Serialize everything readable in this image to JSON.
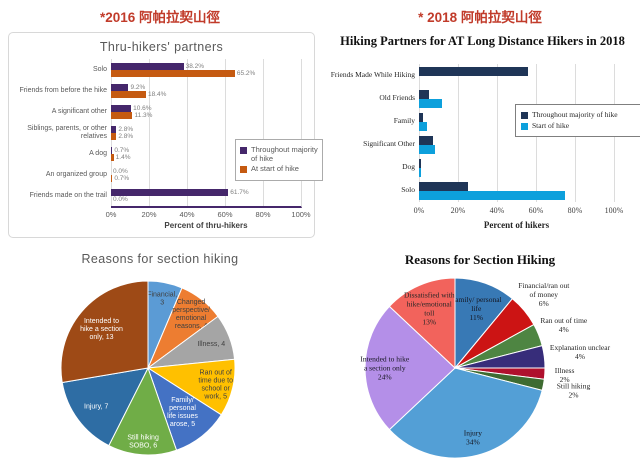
{
  "headers": {
    "left": "*2016 阿帕拉契山徑",
    "right": "* 2018 阿帕拉契山徑"
  },
  "chart_data": [
    {
      "id": "partners-2016",
      "type": "bar",
      "orientation": "horizontal",
      "title": "Thru-hikers' partners",
      "categories": [
        "Solo",
        "Friends from before the hike",
        "A significant other",
        "Siblings, parents, or other relatives",
        "A dog",
        "An organized group",
        "Friends made on the trail"
      ],
      "series": [
        {
          "name": "Throughout majority of hike",
          "color": "#45276B",
          "values": [
            38.2,
            9.2,
            10.6,
            2.8,
            0.7,
            0.0,
            61.7
          ]
        },
        {
          "name": "At start of hike",
          "color": "#C55A11",
          "values": [
            65.2,
            18.4,
            11.3,
            2.8,
            1.4,
            0.7,
            0.0
          ]
        }
      ],
      "xlabel": "Percent of thru-hikers",
      "xlim": [
        0,
        100
      ],
      "xticks": [
        "0%",
        "20%",
        "40%",
        "60%",
        "80%",
        "100%"
      ],
      "show_value_labels": true,
      "grid": true,
      "legend_position": "right-middle"
    },
    {
      "id": "partners-2018",
      "type": "bar",
      "orientation": "horizontal",
      "title": "Hiking Partners for AT Long Distance Hikers in 2018",
      "categories": [
        "Friends Made While Hiking",
        "Old Friends",
        "Family",
        "Significant Other",
        "Dog",
        "Solo"
      ],
      "series": [
        {
          "name": "Throughout majority of hike",
          "color": "#1F3557",
          "values": [
            56,
            5,
            2,
            7,
            1,
            25
          ]
        },
        {
          "name": "Start of hike",
          "color": "#0DA0DC",
          "values": [
            0,
            12,
            4,
            8,
            1,
            75
          ]
        }
      ],
      "xlabel": "Percent of hikers",
      "xlim": [
        0,
        100
      ],
      "xticks": [
        "0%",
        "20%",
        "40%",
        "60%",
        "80%",
        "100%"
      ],
      "show_value_labels": false,
      "grid": true,
      "legend_position": "right-middle"
    },
    {
      "id": "reasons-2016",
      "type": "pie",
      "title": "Reasons for section hiking",
      "start_angle_deg": 0,
      "direction": "clockwise",
      "slices": [
        {
          "label": "Financial",
          "value": 3,
          "color": "#5B9BD5",
          "label_lines": [
            "Financial,",
            "3"
          ],
          "label_color": "#404040",
          "label_r": 0.82
        },
        {
          "label": "Changed perspective/emotional reasons",
          "value": 4,
          "color": "#ED7D31",
          "label_lines": [
            "Changed",
            "perspective/",
            "emotional",
            "reasons, 4"
          ],
          "label_color": "#404040",
          "label_r": 0.8
        },
        {
          "label": "Illness",
          "value": 4,
          "color": "#A5A5A5",
          "label_lines": [
            "Illness, 4"
          ],
          "label_color": "#404040",
          "label_r": 0.78
        },
        {
          "label": "Ran out of time due to school or work",
          "value": 5,
          "color": "#FFC000",
          "label_lines": [
            "Ran out of",
            "time due to",
            "school or",
            "work, 5"
          ],
          "label_color": "#404040",
          "label_r": 0.8
        },
        {
          "label": "Family/personal life issues arose",
          "value": 5,
          "color": "#4472C4",
          "label_lines": [
            "Family/",
            "personal",
            "life issues",
            "arose, 5"
          ],
          "label_color": "#FFFFFF",
          "label_r": 0.64
        },
        {
          "label": "Still hiking SOBO",
          "value": 6,
          "color": "#70AD47",
          "label_lines": [
            "Still hiking",
            "SOBO, 6"
          ],
          "label_color": "#FFFFFF",
          "label_r": 0.84
        },
        {
          "label": "Injury",
          "value": 7,
          "color": "#2E6DA4",
          "label_lines": [
            "Injury, 7"
          ],
          "label_color": "#FFFFFF",
          "label_r": 0.74
        },
        {
          "label": "Intended to hike a section only",
          "value": 13,
          "color": "#9E4A16",
          "label_lines": [
            "Intended to",
            "hike a section",
            "only, 13"
          ],
          "label_color": "#FFFFFF",
          "label_r": 0.7
        }
      ]
    },
    {
      "id": "reasons-2018",
      "type": "pie",
      "title": "Reasons for Section Hiking",
      "start_angle_deg": 0,
      "direction": "clockwise",
      "slices": [
        {
          "label": "Family/ personal life",
          "value": 11,
          "color": "#3879B5",
          "label_lines": [
            "Family/ personal",
            "life",
            "11%"
          ],
          "label_color": "#15151F",
          "label_r": 0.7
        },
        {
          "label": "Financial/ran out of money",
          "value": 6,
          "color": "#CC1414",
          "label_lines": [
            "Financial/ran out",
            "of money",
            "6%"
          ],
          "label_color": "#262626",
          "label_r": 1.28
        },
        {
          "label": "Ran out of time",
          "value": 4,
          "color": "#4E8542",
          "label_lines": [
            "Ran out of time",
            "4%"
          ],
          "label_color": "#262626",
          "label_r": 1.3
        },
        {
          "label": "Explanation unclear",
          "value": 4,
          "color": "#372D7A",
          "label_lines": [
            "Explanation unclear",
            "4%"
          ],
          "label_color": "#262626",
          "label_r": 1.4
        },
        {
          "label": "Illness",
          "value": 2,
          "color": "#AF102D",
          "label_lines": [
            "Illness",
            "2%"
          ],
          "label_color": "#262626",
          "label_r": 1.22
        },
        {
          "label": "Still hiking",
          "value": 2,
          "color": "#3E6B31",
          "label_lines": [
            "Still hiking",
            "2%"
          ],
          "label_color": "#262626",
          "label_r": 1.34
        },
        {
          "label": "Injury",
          "value": 34,
          "color": "#539FD6",
          "label_lines": [
            "Injury",
            "34%"
          ],
          "label_color": "#15151F",
          "label_r": 0.8
        },
        {
          "label": "Intended to hike a section only",
          "value": 24,
          "color": "#B48FE8",
          "label_lines": [
            "Intended to hike",
            "a section only",
            "24%"
          ],
          "label_color": "#15151F",
          "label_r": 0.78
        },
        {
          "label": "Dissatisfied with hike/emotional toll",
          "value": 13,
          "color": "#F2635C",
          "label_lines": [
            "Dissatisfied with",
            "hike/emotional",
            "toll",
            "13%"
          ],
          "label_color": "#262626",
          "label_r": 0.72
        }
      ]
    }
  ]
}
